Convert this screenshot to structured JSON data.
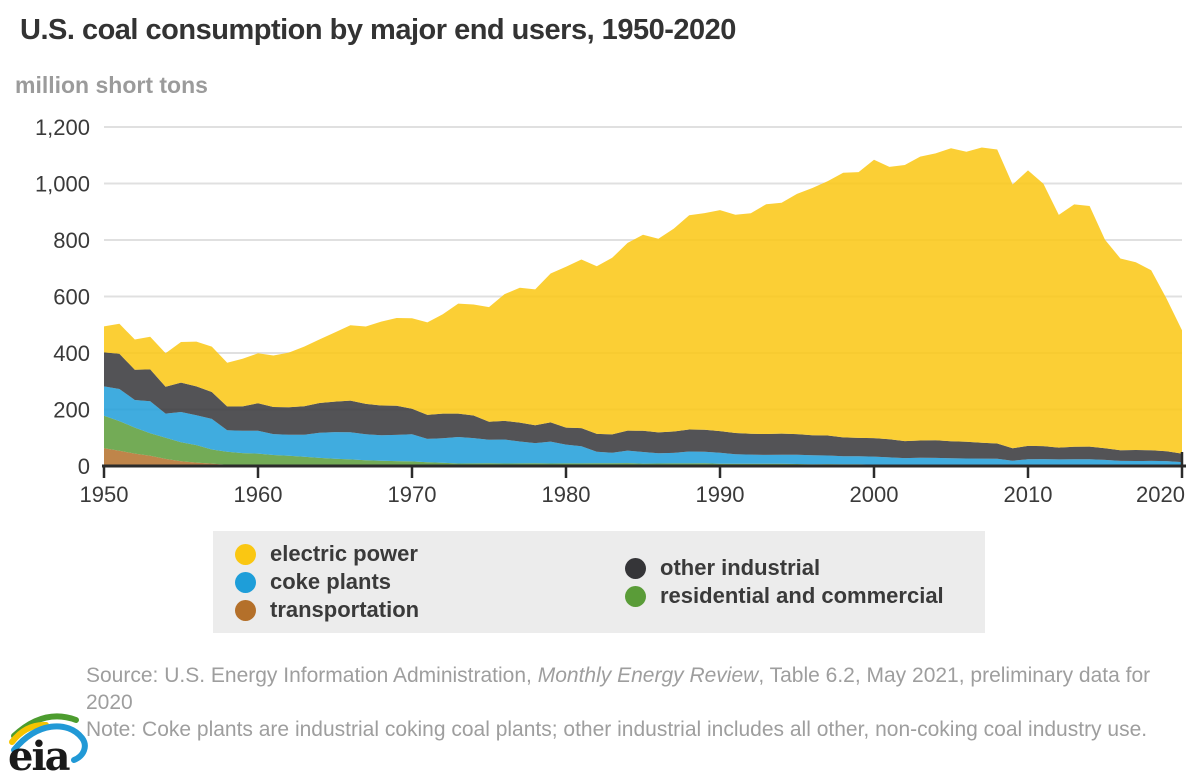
{
  "page": {
    "title": "U.S. coal consumption by major end users, 1950-2020",
    "units_label": "million short tons",
    "source": {
      "prefix": "Source: U.S. Energy Information Administration, ",
      "italic": "Monthly Energy Review",
      "suffix": ", Table 6.2, May 2021, preliminary data for 2020"
    },
    "note": "Note: Coke plants are industrial coking coal plants; other industrial includes all other, non-coking coal industry use.",
    "logo_text": "eia"
  },
  "colors": {
    "title": "#333333",
    "subtitle": "#9b9b9b",
    "axis_line": "#2b2b2b",
    "tick_label": "#3a3a3a",
    "gridline": "#e0e0e0",
    "legend_bg": "#ececec",
    "footer_text": "#9e9e9e"
  },
  "chart_data": {
    "type": "area",
    "stacked": true,
    "title": "U.S. coal consumption by major end users, 1950-2020",
    "xlabel": "",
    "ylabel": "million short tons",
    "ylim": [
      0,
      1200
    ],
    "grid": true,
    "legend_position": "bottom",
    "y_ticks": [
      {
        "value": 0,
        "label": "0"
      },
      {
        "value": 200,
        "label": "200"
      },
      {
        "value": 400,
        "label": "400"
      },
      {
        "value": 600,
        "label": "600"
      },
      {
        "value": 800,
        "label": "800"
      },
      {
        "value": 1000,
        "label": "1,000"
      },
      {
        "value": 1200,
        "label": "1,200"
      }
    ],
    "x_ticks": [
      1950,
      1960,
      1970,
      1980,
      1990,
      2000,
      2010,
      2020
    ],
    "years": [
      1950,
      1951,
      1952,
      1953,
      1954,
      1955,
      1956,
      1957,
      1958,
      1959,
      1960,
      1961,
      1962,
      1963,
      1964,
      1965,
      1966,
      1967,
      1968,
      1969,
      1970,
      1971,
      1972,
      1973,
      1974,
      1975,
      1976,
      1977,
      1978,
      1979,
      1980,
      1981,
      1982,
      1983,
      1984,
      1985,
      1986,
      1987,
      1988,
      1989,
      1990,
      1991,
      1992,
      1993,
      1994,
      1995,
      1996,
      1997,
      1998,
      1999,
      2000,
      2001,
      2002,
      2003,
      2004,
      2005,
      2006,
      2007,
      2008,
      2009,
      2010,
      2011,
      2012,
      2013,
      2014,
      2015,
      2016,
      2017,
      2018,
      2019,
      2020
    ],
    "series": [
      {
        "name": "transportation",
        "color": "#b4702a",
        "values": [
          63,
          54,
          44,
          36,
          25,
          17,
          12,
          8.4,
          4.1,
          3.7,
          3,
          2,
          1,
          0.7,
          0.7,
          0.7,
          0.5,
          0.4,
          0.3,
          0.3,
          0.3,
          0.2,
          0.2,
          0.2,
          0.2,
          0.2,
          0.1,
          0.1,
          0.1,
          0.1,
          0.1,
          0,
          0,
          0,
          0,
          0,
          0,
          0,
          0,
          0,
          0,
          0,
          0,
          0,
          0,
          0,
          0,
          0,
          0,
          0,
          0,
          0,
          0,
          0,
          0,
          0,
          0,
          0,
          0,
          0,
          0,
          0,
          0,
          0,
          0,
          0,
          0,
          0,
          0,
          0,
          0
        ]
      },
      {
        "name": "residential and commercial",
        "color": "#5a9c38",
        "values": [
          114.6,
          105,
          92,
          80,
          75,
          66.8,
          62,
          50,
          46,
          42,
          40.9,
          37,
          35,
          32,
          28,
          25.1,
          23,
          20,
          18,
          17,
          16.1,
          13,
          11,
          8.8,
          9,
          9.4,
          8.9,
          9,
          9.5,
          8.9,
          9,
          9.1,
          9.6,
          9.8,
          10.4,
          8.5,
          8.9,
          9.3,
          9.3,
          9.8,
          8.2,
          8,
          8.1,
          8,
          7.9,
          7,
          6.5,
          6.8,
          6,
          6.2,
          4.5,
          4.4,
          4.4,
          4.9,
          5.1,
          4.2,
          3.5,
          3.5,
          3.7,
          3.4,
          3.1,
          3,
          2.5,
          2.5,
          2.3,
          1.7,
          1.5,
          1.6,
          1.4,
          1.2,
          1
        ]
      },
      {
        "name": "coke plants",
        "color": "#1e9ed9",
        "values": [
          104,
          113.4,
          97.6,
          112.9,
          85.4,
          107.4,
          105.9,
          108.4,
          76.6,
          79.2,
          81,
          73.9,
          74.3,
          77.6,
          89.2,
          94.3,
          95.9,
          92.3,
          90.8,
          92.9,
          96,
          82.8,
          87.3,
          93.6,
          89.7,
          83.6,
          84.7,
          77.7,
          71.4,
          77.4,
          66.7,
          61,
          40.9,
          37,
          44,
          41.1,
          35.9,
          37,
          41.9,
          40.5,
          38.9,
          33.9,
          32.4,
          31.3,
          31.7,
          33,
          31.7,
          30.2,
          28.2,
          28.1,
          28.9,
          26.1,
          23.7,
          24.2,
          23.7,
          23.4,
          23,
          22.7,
          22.1,
          15.3,
          21.1,
          21.4,
          20.8,
          21.5,
          21.3,
          19.8,
          16.5,
          16.1,
          16.7,
          16.3,
          12.8
        ]
      },
      {
        "name": "other industrial",
        "color": "#353538",
        "values": [
          120.6,
          125,
          107,
          113,
          95,
          104,
          102,
          95,
          84,
          86,
          97.5,
          96,
          98,
          101,
          105,
          108,
          112,
          107,
          105,
          103,
          90.2,
          85,
          87,
          83,
          80,
          63.4,
          66,
          67,
          63,
          68,
          60.3,
          64,
          63,
          65,
          71,
          75,
          74,
          76,
          78,
          78,
          76.3,
          75,
          74,
          74,
          75,
          73,
          71,
          71,
          67,
          65,
          65.2,
          64,
          60,
          61,
          62,
          60,
          59,
          56,
          54,
          44,
          47,
          46,
          42,
          44,
          45,
          41,
          38,
          39,
          38,
          35,
          30
        ]
      },
      {
        "name": "electric power",
        "color": "#fac712",
        "values": [
          91.9,
          105.8,
          107.1,
          115.9,
          118.4,
          143.8,
          158.4,
          160.8,
          155.1,
          168.4,
          176.6,
          182.1,
          193.2,
          211.3,
          225.4,
          244.8,
          266.5,
          274.2,
          297.1,
          310.6,
          320.2,
          327.3,
          351.8,
          389.2,
          392.8,
          405.8,
          448.4,
          477.1,
          481.2,
          527.1,
          569.3,
          596.8,
          593.7,
          625.2,
          664.4,
          693.8,
          685.7,
          717.9,
          758.4,
          766.9,
          782.6,
          772.3,
          779.9,
          813.5,
          817.3,
          850.2,
          874.7,
          900.4,
          936.6,
          940.9,
          985.8,
          964.4,
          977.5,
          1005.1,
          1015.8,
          1037.5,
          1026.6,
          1045.1,
          1040.6,
          933.6,
          975.1,
          928.6,
          823.6,
          858,
          851.6,
          738.4,
          678.6,
          664.8,
          636.5,
          539.4,
          436.5
        ]
      }
    ],
    "legend_columns": [
      [
        "electric power",
        "coke plants",
        "transportation"
      ],
      [
        "other industrial",
        "residential and commercial"
      ]
    ]
  }
}
